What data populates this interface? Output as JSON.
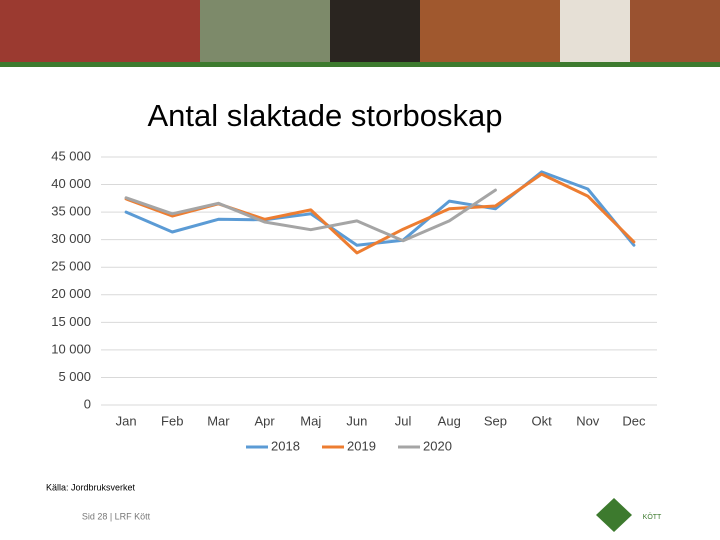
{
  "chart_data": {
    "type": "line",
    "title": "Antal slaktade storboskap",
    "categories": [
      "Jan",
      "Feb",
      "Mar",
      "Apr",
      "Maj",
      "Jun",
      "Jul",
      "Aug",
      "Sep",
      "Okt",
      "Nov",
      "Dec"
    ],
    "series": [
      {
        "name": "2018",
        "color": "#5b9bd5",
        "values": [
          35000,
          31400,
          33700,
          33600,
          34700,
          29000,
          29900,
          37000,
          35600,
          42300,
          39200,
          29000
        ]
      },
      {
        "name": "2019",
        "color": "#ed7d31",
        "values": [
          37400,
          34300,
          36500,
          33700,
          35400,
          27600,
          31900,
          35600,
          36100,
          41900,
          37900,
          29600
        ]
      },
      {
        "name": "2020",
        "color": "#a5a5a5",
        "values": [
          37600,
          34700,
          36600,
          33200,
          31800,
          33400,
          29800,
          33400,
          39000,
          null,
          null,
          null
        ]
      }
    ],
    "ylim": [
      0,
      45000
    ],
    "yticks": [
      0,
      {
        "value": 5000,
        "label": "5 000"
      },
      {
        "value": 10000,
        "label": "10 000"
      },
      {
        "value": 15000,
        "label": "15 000"
      },
      {
        "value": 20000,
        "label": "20 000"
      },
      {
        "value": 25000,
        "label": "25 000"
      },
      {
        "value": 30000,
        "label": "30 000"
      },
      {
        "value": 35000,
        "label": "35 000"
      },
      {
        "value": 40000,
        "label": "40 000"
      },
      {
        "value": 45000,
        "label": "45 000"
      }
    ],
    "grid": true,
    "legend": "bottom",
    "source": "Källa: Jordbruksverket",
    "footer": "Sid 28 | LRF Kött",
    "logo_text": "KÖTT"
  }
}
